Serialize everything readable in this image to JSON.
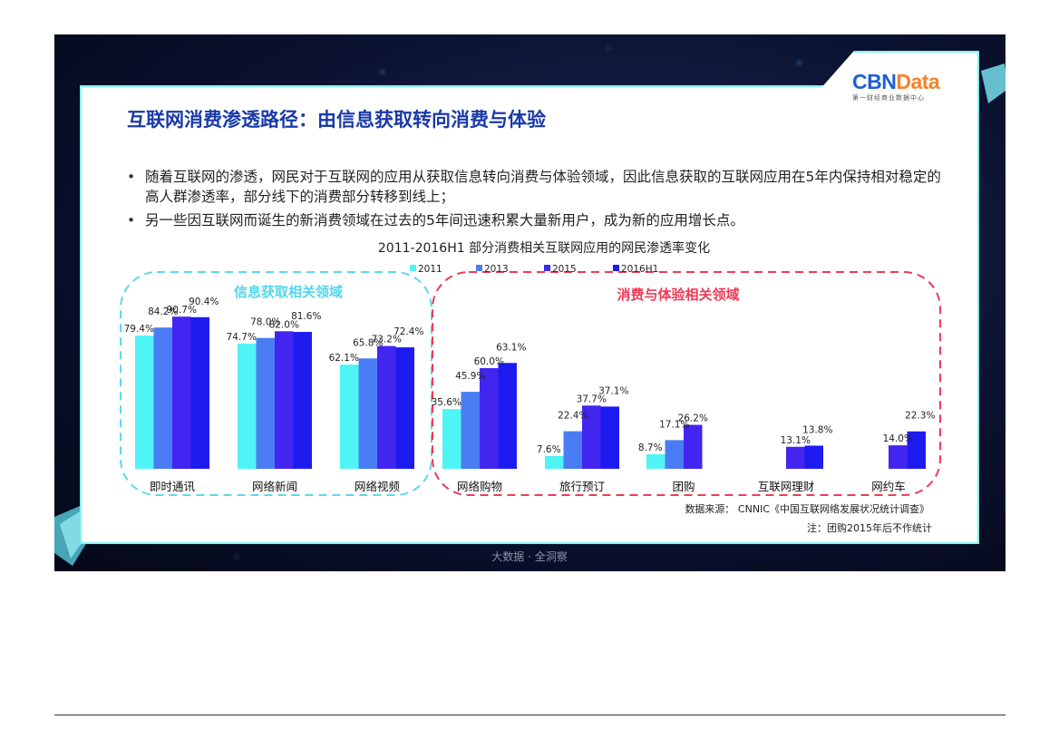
{
  "logo": {
    "brand_a": "CBN",
    "brand_b": "Data",
    "tagline": "第一财经商业数据中心"
  },
  "title": "互联网消费渗透路径：由信息获取转向消费与体验",
  "bullets": [
    "随着互联网的渗透，网民对于互联网的应用从获取信息转向消费与体验领域，因此信息获取的互联网应用在5年内保持相对稳定的高人群渗透率，部分线下的消费部分转移到线上；",
    "另一些因互联网而诞生的新消费领域在过去的5年间迅速积累大量新用户，成为新的应用增长点。"
  ],
  "groups": {
    "info": "信息获取相关领域",
    "consume": "消费与体验相关领域"
  },
  "source": "数据来源： CNNIC《中国互联网络发展状况统计调查》",
  "note": "注：团购2015年后不作统计",
  "footer": "大数据 · 全洞察",
  "colors": {
    "frame_border": "#7ff3f0",
    "title": "#1a3aa8",
    "info_border": "#5ad9f0",
    "info_label": "#4fd8ee",
    "consume_border": "#ee3b57",
    "consume_label": "#ee3b57"
  },
  "chart_data": {
    "type": "bar",
    "title": "2011-2016H1 部分消费相关互联网应用的网民渗透率变化",
    "categories": [
      "即时通讯",
      "网络新闻",
      "网络视频",
      "网络购物",
      "旅行预订",
      "团购",
      "互联网理财",
      "网约车"
    ],
    "series": [
      {
        "name": "2011",
        "color": "#4ff4f6",
        "values": [
          79.4,
          74.7,
          62.1,
          35.6,
          7.6,
          8.7,
          null,
          null
        ],
        "labels": [
          "79.4%",
          "74.7%",
          "62.1%",
          "35.6%",
          "7.6%",
          "8.7%",
          "",
          ""
        ]
      },
      {
        "name": "2013",
        "color": "#4a7df3",
        "values": [
          84.2,
          78.0,
          65.8,
          45.9,
          22.4,
          17.1,
          null,
          null
        ],
        "labels": [
          "84.2%",
          "78.0%",
          "65.8%",
          "45.9%",
          "22.4%",
          "17.1%",
          "",
          ""
        ]
      },
      {
        "name": "2015",
        "color": "#4226f0",
        "values": [
          90.7,
          82.0,
          73.2,
          60.0,
          37.7,
          26.2,
          13.1,
          14.0
        ],
        "labels": [
          "90.7%",
          "82.0%",
          "73.2%",
          "60.0%",
          "37.7%",
          "26.2%",
          "13.1%",
          "14.0%"
        ]
      },
      {
        "name": "2016H1",
        "color": "#1e1bf0",
        "values": [
          90.4,
          81.6,
          72.4,
          63.1,
          37.1,
          null,
          13.8,
          22.3
        ],
        "labels": [
          "90.4%",
          "81.6%",
          "72.4%",
          "63.1%",
          "37.1%",
          "",
          "13.8%",
          "22.3%"
        ]
      }
    ],
    "ylim": [
      0,
      100
    ],
    "grid": false,
    "legend": "top-center"
  }
}
